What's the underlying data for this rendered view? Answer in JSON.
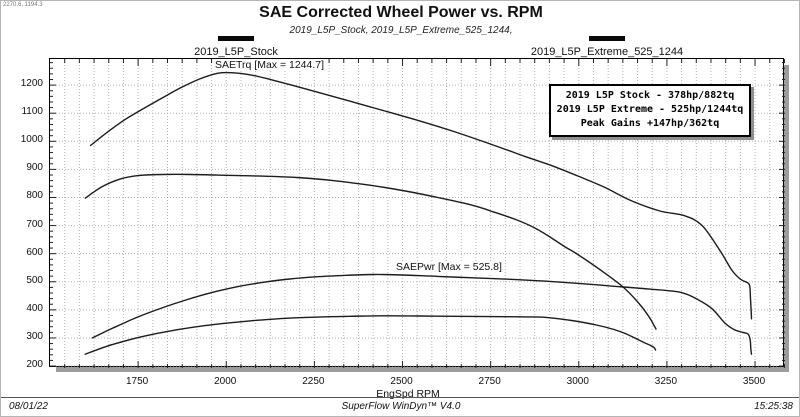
{
  "window": {
    "cursor_readout": "2270.6, 1194.3",
    "footer": {
      "date": "08/01/22",
      "app": "SuperFlow WinDyn™ V4.0",
      "time": "15:25:38"
    }
  },
  "header": {
    "title": "SAE Corrected Wheel Power vs. RPM",
    "subtitle": "2019_L5P_Stock, 2019_L5P_Extreme_525_1244,"
  },
  "legend": {
    "items": [
      {
        "label": "2019_L5P_Stock",
        "swatch_color": "#0a0a0a"
      },
      {
        "label": "2019_L5P_Extreme_525_1244",
        "swatch_color": "#0a0a0a"
      }
    ]
  },
  "annotations": {
    "torque_max": "SAETrq [Max = 1244.7]",
    "power_max": "SAEPwr [Max = 525.8]"
  },
  "info_box": {
    "lines": [
      "2019 L5P Stock - 378hp/882tq",
      "2019 L5P Extreme - 525hp/1244tq",
      "Peak Gains +147hp/362tq"
    ]
  },
  "colors": {
    "curve": "#1c1c1c",
    "grid": "#b3b3b3",
    "tick": "#222222",
    "plot_border": "#000000",
    "shadow": "#9c9c9c"
  },
  "chart_data": {
    "type": "line",
    "title": "SAE Corrected Wheel Power vs. RPM",
    "xlabel": "EngSpd RPM",
    "ylabel": "",
    "xlim": [
      1500,
      3585
    ],
    "ylim": [
      193,
      1293
    ],
    "x_ticks": [
      1750,
      2000,
      2250,
      2500,
      2750,
      3000,
      3250,
      3500
    ],
    "y_ticks": [
      200,
      300,
      400,
      500,
      600,
      700,
      800,
      900,
      1000,
      1100,
      1200
    ],
    "x_minor_step": 41.6667,
    "y_minor_step": 20,
    "grid": "dotted",
    "legend_position": "top",
    "series": [
      {
        "name": "SAETrq 2019_L5P_Extreme_525_1244 (lb-ft)",
        "peak": 1244.7,
        "points": [
          [
            1615,
            985
          ],
          [
            1660,
            1030
          ],
          [
            1710,
            1075
          ],
          [
            1760,
            1113
          ],
          [
            1815,
            1152
          ],
          [
            1870,
            1190
          ],
          [
            1925,
            1222
          ],
          [
            1975,
            1242
          ],
          [
            2020,
            1244
          ],
          [
            2075,
            1235
          ],
          [
            2150,
            1212
          ],
          [
            2250,
            1178
          ],
          [
            2350,
            1143
          ],
          [
            2450,
            1108
          ],
          [
            2550,
            1072
          ],
          [
            2650,
            1033
          ],
          [
            2750,
            990
          ],
          [
            2850,
            945
          ],
          [
            2920,
            915
          ],
          [
            3000,
            875
          ],
          [
            3070,
            838
          ],
          [
            3150,
            788
          ],
          [
            3230,
            752
          ],
          [
            3300,
            735
          ],
          [
            3350,
            700
          ],
          [
            3400,
            612
          ],
          [
            3435,
            540
          ],
          [
            3460,
            508
          ],
          [
            3478,
            497
          ],
          [
            3485,
            485
          ],
          [
            3487,
            440
          ],
          [
            3489,
            395
          ],
          [
            3490,
            368
          ]
        ]
      },
      {
        "name": "SAETrq 2019_L5P_Stock (lb-ft)",
        "peak": 882,
        "points": [
          [
            1600,
            798
          ],
          [
            1650,
            840
          ],
          [
            1700,
            866
          ],
          [
            1750,
            878
          ],
          [
            1820,
            882
          ],
          [
            1900,
            882
          ],
          [
            2000,
            879
          ],
          [
            2100,
            876
          ],
          [
            2200,
            871
          ],
          [
            2300,
            861
          ],
          [
            2400,
            845
          ],
          [
            2500,
            825
          ],
          [
            2600,
            800
          ],
          [
            2700,
            772
          ],
          [
            2750,
            752
          ],
          [
            2820,
            722
          ],
          [
            2870,
            695
          ],
          [
            2910,
            666
          ],
          [
            2960,
            625
          ],
          [
            2995,
            599
          ],
          [
            3058,
            545
          ],
          [
            3126,
            481
          ],
          [
            3172,
            421
          ],
          [
            3200,
            374
          ],
          [
            3212,
            348
          ],
          [
            3219,
            332
          ]
        ]
      },
      {
        "name": "SAEPwr 2019_L5P_Extreme_525_1244 (hp)",
        "peak": 525.8,
        "points": [
          [
            1620,
            300
          ],
          [
            1680,
            336
          ],
          [
            1750,
            375
          ],
          [
            1820,
            408
          ],
          [
            1890,
            437
          ],
          [
            1960,
            462
          ],
          [
            2030,
            482
          ],
          [
            2100,
            497
          ],
          [
            2180,
            510
          ],
          [
            2260,
            518
          ],
          [
            2340,
            523
          ],
          [
            2420,
            526
          ],
          [
            2500,
            524
          ],
          [
            2600,
            519
          ],
          [
            2700,
            514
          ],
          [
            2800,
            509
          ],
          [
            2908,
            502
          ],
          [
            3000,
            494
          ],
          [
            3100,
            484
          ],
          [
            3200,
            474
          ],
          [
            3290,
            462
          ],
          [
            3340,
            435
          ],
          [
            3380,
            402
          ],
          [
            3415,
            352
          ],
          [
            3440,
            330
          ],
          [
            3465,
            320
          ],
          [
            3480,
            314
          ],
          [
            3486,
            295
          ],
          [
            3488,
            262
          ],
          [
            3490,
            242
          ]
        ]
      },
      {
        "name": "SAEPwr 2019_L5P_Stock (hp)",
        "peak": 378,
        "points": [
          [
            1600,
            242
          ],
          [
            1660,
            270
          ],
          [
            1730,
            295
          ],
          [
            1800,
            315
          ],
          [
            1870,
            331
          ],
          [
            1940,
            344
          ],
          [
            2010,
            354
          ],
          [
            2090,
            363
          ],
          [
            2170,
            370
          ],
          [
            2250,
            374
          ],
          [
            2350,
            377
          ],
          [
            2450,
            379
          ],
          [
            2550,
            378
          ],
          [
            2650,
            377
          ],
          [
            2750,
            376
          ],
          [
            2850,
            375
          ],
          [
            2908,
            373
          ],
          [
            2980,
            362
          ],
          [
            3050,
            346
          ],
          [
            3100,
            330
          ],
          [
            3135,
            314
          ],
          [
            3183,
            285
          ],
          [
            3211,
            268
          ],
          [
            3218,
            257
          ]
        ]
      }
    ]
  }
}
